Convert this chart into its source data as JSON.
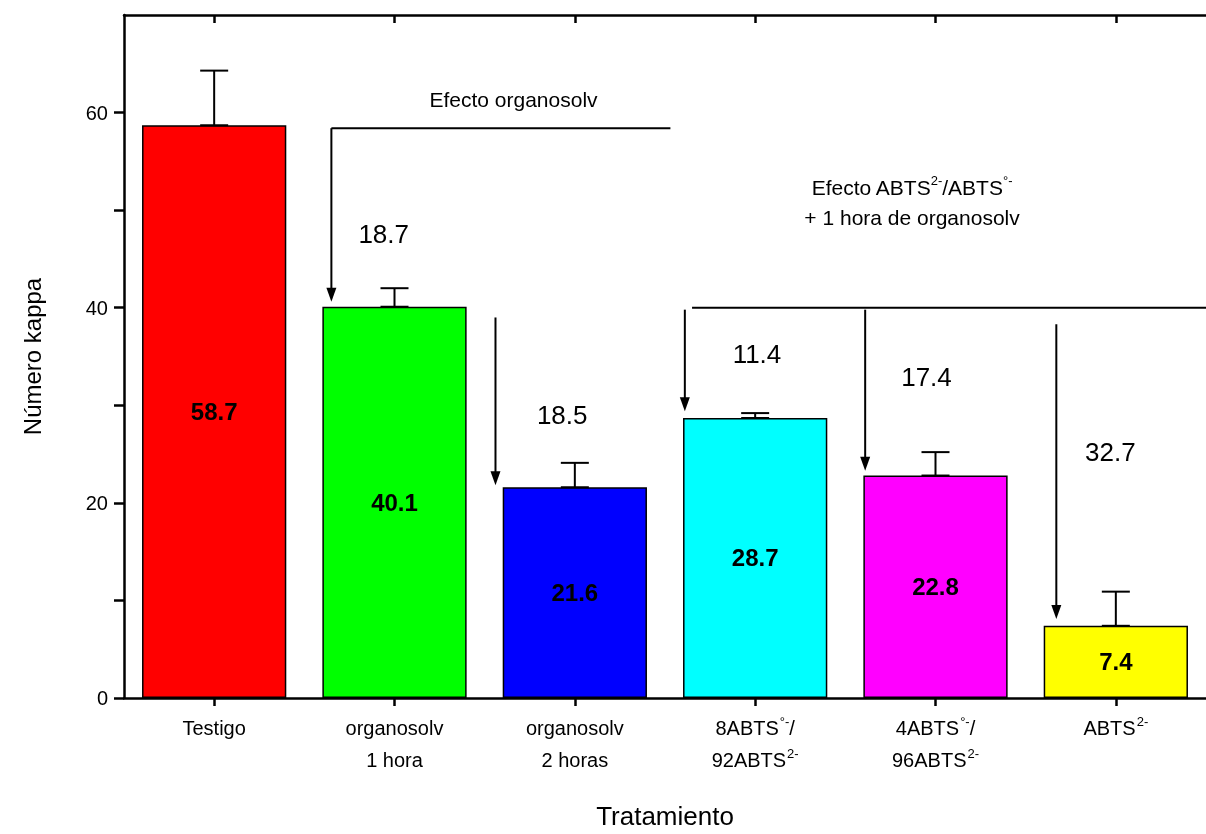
{
  "chart_data": {
    "type": "bar",
    "xlabel": "Tratamiento",
    "ylabel": "Número kappa",
    "categories": [
      "Testigo",
      "organosolv\n1 hora",
      "organosolv\n2 horas",
      "8ABTS$^{°-}$/\n92ABTS$^{2-}$",
      "4ABTS$^{°-}$/\n96ABTS$^{2-}$",
      "ABTS$^{2-}$"
    ],
    "values": [
      58.7,
      40.1,
      21.6,
      28.7,
      22.8,
      7.4
    ],
    "colors": [
      "#ff0000",
      "#00ff00",
      "#0000ff",
      "#00ffff",
      "#ff00ff",
      "#ffff00"
    ],
    "errors": [
      [
        58.7,
        64.3
      ],
      [
        40.1,
        42.0
      ],
      [
        21.6,
        24.1
      ],
      [
        28.7,
        29.2
      ],
      [
        22.8,
        25.2
      ],
      [
        7.4,
        10.9
      ]
    ],
    "data_labels": true,
    "ylim": [
      0,
      70
    ],
    "yticks": [
      0,
      {
        "value": 10,
        "label": null
      },
      20,
      {
        "value": 30,
        "label": null
      },
      40,
      {
        "value": 50,
        "label": null
      },
      60
    ],
    "annotations": [
      "Efecto organosolv",
      "18.7",
      "18.5",
      "Efecto ABTS$^{2-}$/ABTS$^{°-}$\n+ 1 hora de organosolv",
      "11.4",
      "17.4",
      "32.7"
    ]
  }
}
